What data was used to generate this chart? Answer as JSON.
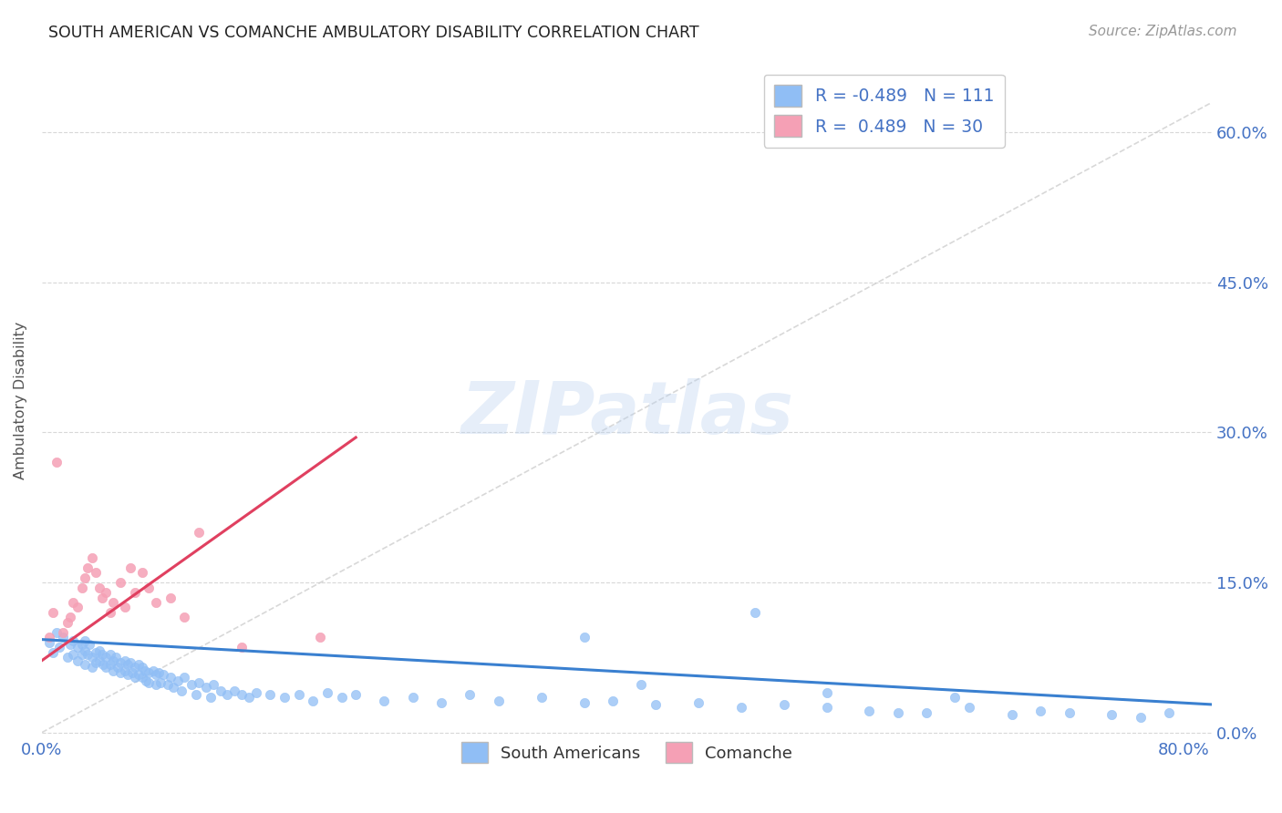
{
  "title": "SOUTH AMERICAN VS COMANCHE AMBULATORY DISABILITY CORRELATION CHART",
  "source": "Source: ZipAtlas.com",
  "ylabel": "Ambulatory Disability",
  "xlim": [
    0.0,
    0.82
  ],
  "ylim": [
    -0.005,
    0.67
  ],
  "yticks": [
    0.0,
    0.15,
    0.3,
    0.45,
    0.6
  ],
  "ytick_labels": [
    "0.0%",
    "15.0%",
    "30.0%",
    "45.0%",
    "60.0%"
  ],
  "xticks": [
    0.0,
    0.1,
    0.2,
    0.3,
    0.4,
    0.5,
    0.6,
    0.7,
    0.8
  ],
  "blue_R": -0.489,
  "blue_N": 111,
  "pink_R": 0.489,
  "pink_N": 30,
  "blue_color": "#90bef5",
  "pink_color": "#f5a0b5",
  "blue_line_color": "#3a80d0",
  "pink_line_color": "#e04060",
  "ref_line_color": "#c8c8c8",
  "title_color": "#222222",
  "axis_label_color": "#555555",
  "tick_color": "#4472c4",
  "legend_text_color": "#4472c4",
  "background_color": "#ffffff",
  "watermark_text": "ZIPatlas",
  "grid_color": "#d8d8d8",
  "blue_scatter_x": [
    0.005,
    0.008,
    0.01,
    0.012,
    0.015,
    0.018,
    0.02,
    0.022,
    0.022,
    0.025,
    0.025,
    0.028,
    0.028,
    0.03,
    0.03,
    0.03,
    0.032,
    0.033,
    0.035,
    0.035,
    0.038,
    0.038,
    0.04,
    0.04,
    0.042,
    0.043,
    0.045,
    0.045,
    0.048,
    0.048,
    0.05,
    0.05,
    0.052,
    0.053,
    0.055,
    0.055,
    0.058,
    0.058,
    0.06,
    0.06,
    0.062,
    0.063,
    0.065,
    0.065,
    0.068,
    0.068,
    0.07,
    0.07,
    0.072,
    0.073,
    0.075,
    0.075,
    0.078,
    0.08,
    0.08,
    0.082,
    0.083,
    0.085,
    0.088,
    0.09,
    0.092,
    0.095,
    0.098,
    0.1,
    0.105,
    0.108,
    0.11,
    0.115,
    0.118,
    0.12,
    0.125,
    0.13,
    0.135,
    0.14,
    0.145,
    0.15,
    0.16,
    0.17,
    0.18,
    0.19,
    0.2,
    0.21,
    0.22,
    0.24,
    0.26,
    0.28,
    0.3,
    0.32,
    0.35,
    0.38,
    0.4,
    0.43,
    0.46,
    0.49,
    0.52,
    0.55,
    0.58,
    0.62,
    0.65,
    0.68,
    0.7,
    0.72,
    0.75,
    0.77,
    0.79,
    0.5,
    0.42,
    0.38,
    0.6,
    0.64,
    0.55
  ],
  "blue_scatter_y": [
    0.09,
    0.08,
    0.1,
    0.085,
    0.095,
    0.075,
    0.088,
    0.092,
    0.078,
    0.085,
    0.072,
    0.088,
    0.078,
    0.082,
    0.092,
    0.068,
    0.078,
    0.088,
    0.075,
    0.065,
    0.08,
    0.07,
    0.082,
    0.072,
    0.078,
    0.068,
    0.075,
    0.065,
    0.078,
    0.068,
    0.072,
    0.062,
    0.075,
    0.065,
    0.07,
    0.06,
    0.072,
    0.062,
    0.068,
    0.058,
    0.07,
    0.06,
    0.065,
    0.055,
    0.068,
    0.058,
    0.065,
    0.055,
    0.062,
    0.052,
    0.06,
    0.05,
    0.062,
    0.058,
    0.048,
    0.06,
    0.05,
    0.058,
    0.048,
    0.055,
    0.045,
    0.052,
    0.042,
    0.055,
    0.048,
    0.038,
    0.05,
    0.045,
    0.035,
    0.048,
    0.042,
    0.038,
    0.042,
    0.038,
    0.035,
    0.04,
    0.038,
    0.035,
    0.038,
    0.032,
    0.04,
    0.035,
    0.038,
    0.032,
    0.035,
    0.03,
    0.038,
    0.032,
    0.035,
    0.03,
    0.032,
    0.028,
    0.03,
    0.025,
    0.028,
    0.025,
    0.022,
    0.02,
    0.025,
    0.018,
    0.022,
    0.02,
    0.018,
    0.015,
    0.02,
    0.12,
    0.048,
    0.095,
    0.02,
    0.035,
    0.04
  ],
  "pink_scatter_x": [
    0.005,
    0.008,
    0.01,
    0.015,
    0.018,
    0.02,
    0.022,
    0.025,
    0.028,
    0.03,
    0.032,
    0.035,
    0.038,
    0.04,
    0.042,
    0.045,
    0.048,
    0.05,
    0.055,
    0.058,
    0.062,
    0.065,
    0.07,
    0.075,
    0.08,
    0.09,
    0.1,
    0.11,
    0.14,
    0.195
  ],
  "pink_scatter_y": [
    0.095,
    0.12,
    0.27,
    0.1,
    0.11,
    0.115,
    0.13,
    0.125,
    0.145,
    0.155,
    0.165,
    0.175,
    0.16,
    0.145,
    0.135,
    0.14,
    0.12,
    0.13,
    0.15,
    0.125,
    0.165,
    0.14,
    0.16,
    0.145,
    0.13,
    0.135,
    0.115,
    0.2,
    0.085,
    0.095
  ],
  "blue_trend_x": [
    0.0,
    0.82
  ],
  "blue_trend_y": [
    0.093,
    0.028
  ],
  "pink_trend_x": [
    0.0,
    0.22
  ],
  "pink_trend_y": [
    0.072,
    0.295
  ],
  "ref_line_x": [
    0.0,
    0.82
  ],
  "ref_line_y": [
    0.0,
    0.63
  ],
  "figsize": [
    14.06,
    8.92
  ],
  "dpi": 100
}
